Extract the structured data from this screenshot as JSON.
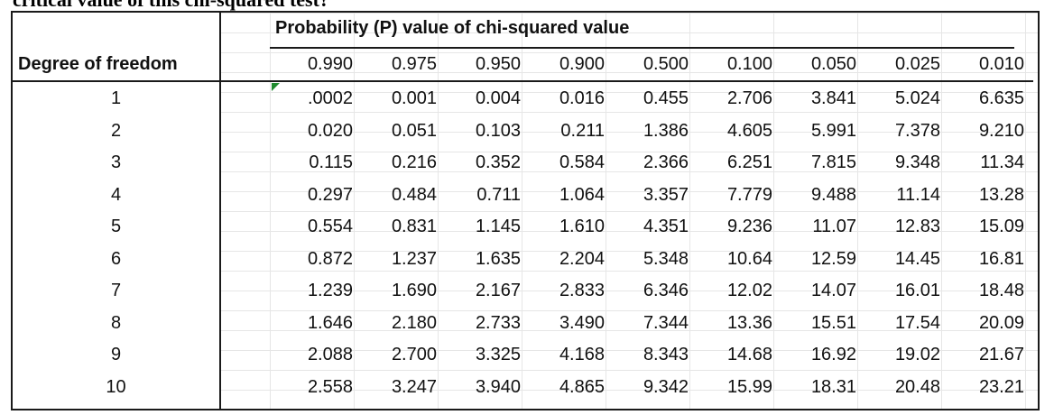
{
  "heading_fragment": "critical value of this chi-squared test?",
  "table": {
    "title": "Probability (P) value of chi-squared value",
    "row_header_label": "Degree of freedom",
    "p_values": [
      "0.990",
      "0.975",
      "0.950",
      "0.900",
      "0.500",
      "0.100",
      "0.050",
      "0.025",
      "0.010"
    ],
    "rows": [
      {
        "df": "1",
        "values": [
          ".0002",
          "0.001",
          "0.004",
          "0.016",
          "0.455",
          "2.706",
          "3.841",
          "5.024",
          "6.635"
        ]
      },
      {
        "df": "2",
        "values": [
          "0.020",
          "0.051",
          "0.103",
          "0.211",
          "1.386",
          "4.605",
          "5.991",
          "7.378",
          "9.210"
        ]
      },
      {
        "df": "3",
        "values": [
          "0.115",
          "0.216",
          "0.352",
          "0.584",
          "2.366",
          "6.251",
          "7.815",
          "9.348",
          "11.34"
        ]
      },
      {
        "df": "4",
        "values": [
          "0.297",
          "0.484",
          "0.711",
          "1.064",
          "3.357",
          "7.779",
          "9.488",
          "11.14",
          "13.28"
        ]
      },
      {
        "df": "5",
        "values": [
          "0.554",
          "0.831",
          "1.145",
          "1.610",
          "4.351",
          "9.236",
          "11.07",
          "12.83",
          "15.09"
        ]
      },
      {
        "df": "6",
        "values": [
          "0.872",
          "1.237",
          "1.635",
          "2.204",
          "5.348",
          "10.64",
          "12.59",
          "14.45",
          "16.81"
        ]
      },
      {
        "df": "7",
        "values": [
          "1.239",
          "1.690",
          "2.167",
          "2.833",
          "6.346",
          "12.02",
          "14.07",
          "16.01",
          "18.48"
        ]
      },
      {
        "df": "8",
        "values": [
          "1.646",
          "2.180",
          "2.733",
          "3.490",
          "7.344",
          "13.36",
          "15.51",
          "17.54",
          "20.09"
        ]
      },
      {
        "df": "9",
        "values": [
          "2.088",
          "2.700",
          "3.325",
          "4.168",
          "8.343",
          "14.68",
          "16.92",
          "19.02",
          "21.67"
        ]
      },
      {
        "df": "10",
        "values": [
          "2.558",
          "3.247",
          "3.940",
          "4.865",
          "9.342",
          "15.99",
          "18.31",
          "20.48",
          "23.21"
        ]
      }
    ]
  }
}
